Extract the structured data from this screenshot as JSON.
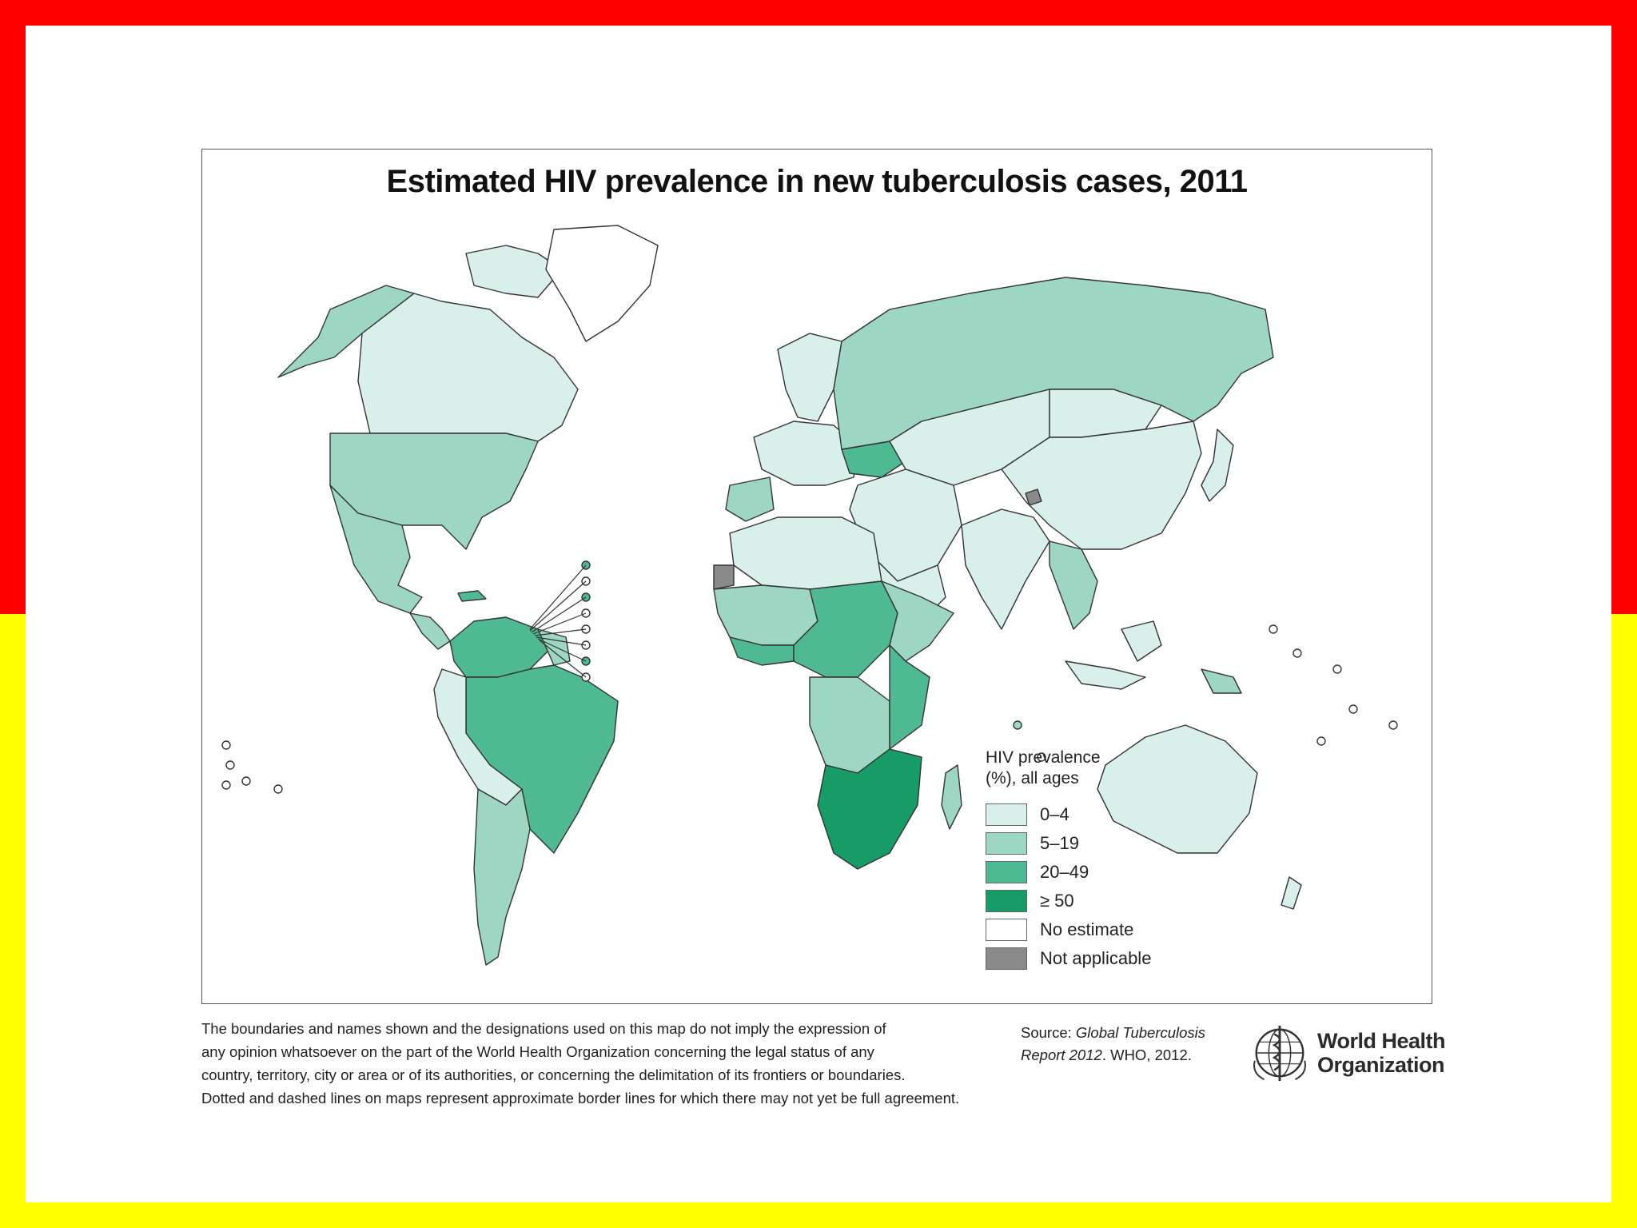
{
  "slide": {
    "colors": {
      "frame_top": "#ff0000",
      "frame_bottom": "#ffff00",
      "background": "#ffffff"
    }
  },
  "map": {
    "title": "Estimated HIV prevalence in new tuberculosis cases, 2011",
    "legend": {
      "title_line1": "HIV prevalence",
      "title_line2": "(%), all ages",
      "items": [
        {
          "label": "0–4",
          "color": "#d9efea"
        },
        {
          "label": "5–19",
          "color": "#9dd6c3"
        },
        {
          "label": "20–49",
          "color": "#4fb993"
        },
        {
          "label": "≥ 50",
          "color": "#179c68"
        },
        {
          "label": "No estimate",
          "color": "#ffffff"
        },
        {
          "label": "Not applicable",
          "color": "#8a8a8a"
        }
      ]
    }
  },
  "footer": {
    "disclaimer": [
      "The boundaries and names shown and the designations used on this map do not imply the expression of",
      "any opinion whatsoever on the part of the World Health Organization concerning the legal status of any",
      "country, territory, city or area or of its authorities, or concerning the delimitation of its frontiers or boundaries.",
      "Dotted and dashed lines on maps represent approximate border lines for which there may not yet be full agreement."
    ],
    "source_prefix": "Source: ",
    "source_italic_1": "Global Tuberculosis",
    "source_italic_2": "Report 2012",
    "source_suffix": ". WHO, 2012.",
    "logo_line1": "World Health",
    "logo_line2": "Organization"
  }
}
